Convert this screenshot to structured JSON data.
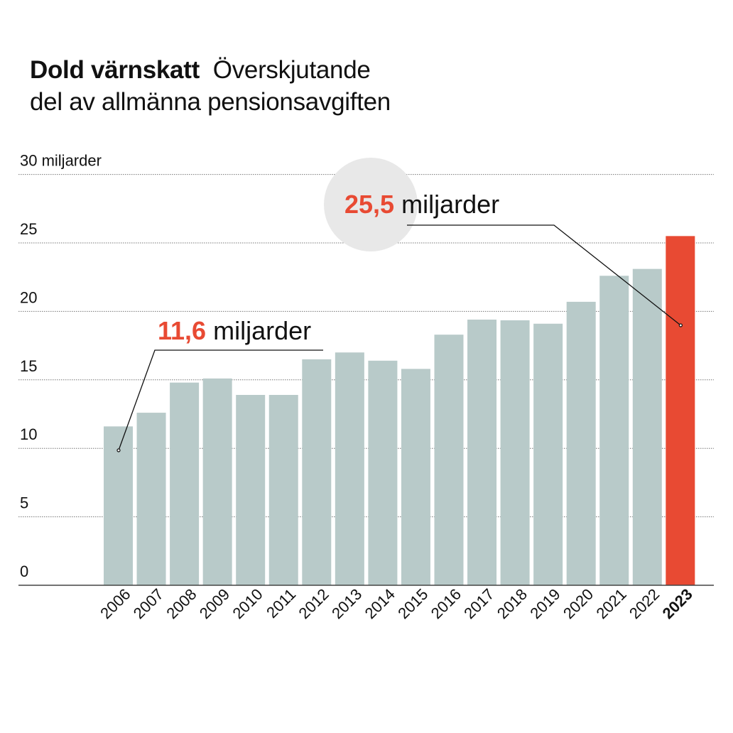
{
  "title": {
    "bold": "Dold värnskatt",
    "rest_line1": "Överskjutande",
    "line2": "del av allmänna pensionsavgiften"
  },
  "colors": {
    "bar": "#b8cac9",
    "highlight": "#e84a33",
    "callout_circle": "#e8e8e8",
    "grid": "#777777",
    "axis": "#444444"
  },
  "callouts": [
    {
      "year": "2006",
      "value_label": "11,6",
      "unit_label": "miljarder"
    },
    {
      "year": "2023",
      "value_label": "25,5",
      "unit_label": "miljarder"
    }
  ],
  "chart_data": {
    "type": "bar",
    "title": "Dold värnskatt Överskjutande del av allmänna pensionsavgiften",
    "xlabel": "",
    "ylabel": "miljarder",
    "categories": [
      "2006",
      "2007",
      "2008",
      "2009",
      "2010",
      "2011",
      "2012",
      "2013",
      "2014",
      "2015",
      "2016",
      "2017",
      "2018",
      "2019",
      "2020",
      "2021",
      "2022",
      "2023"
    ],
    "values": [
      11.6,
      12.6,
      14.8,
      15.1,
      13.9,
      13.9,
      16.5,
      17.0,
      16.4,
      15.8,
      18.3,
      19.4,
      19.35,
      19.1,
      20.7,
      22.6,
      23.1,
      25.5
    ],
    "highlight": "2023",
    "ylim": [
      0,
      30
    ],
    "yticks": [
      0,
      5,
      10,
      15,
      20,
      25,
      30
    ],
    "ytick_labels": [
      "0",
      "5",
      "10",
      "15",
      "20",
      "25",
      "30 miljarder"
    ],
    "grid": true,
    "legend": "none"
  }
}
